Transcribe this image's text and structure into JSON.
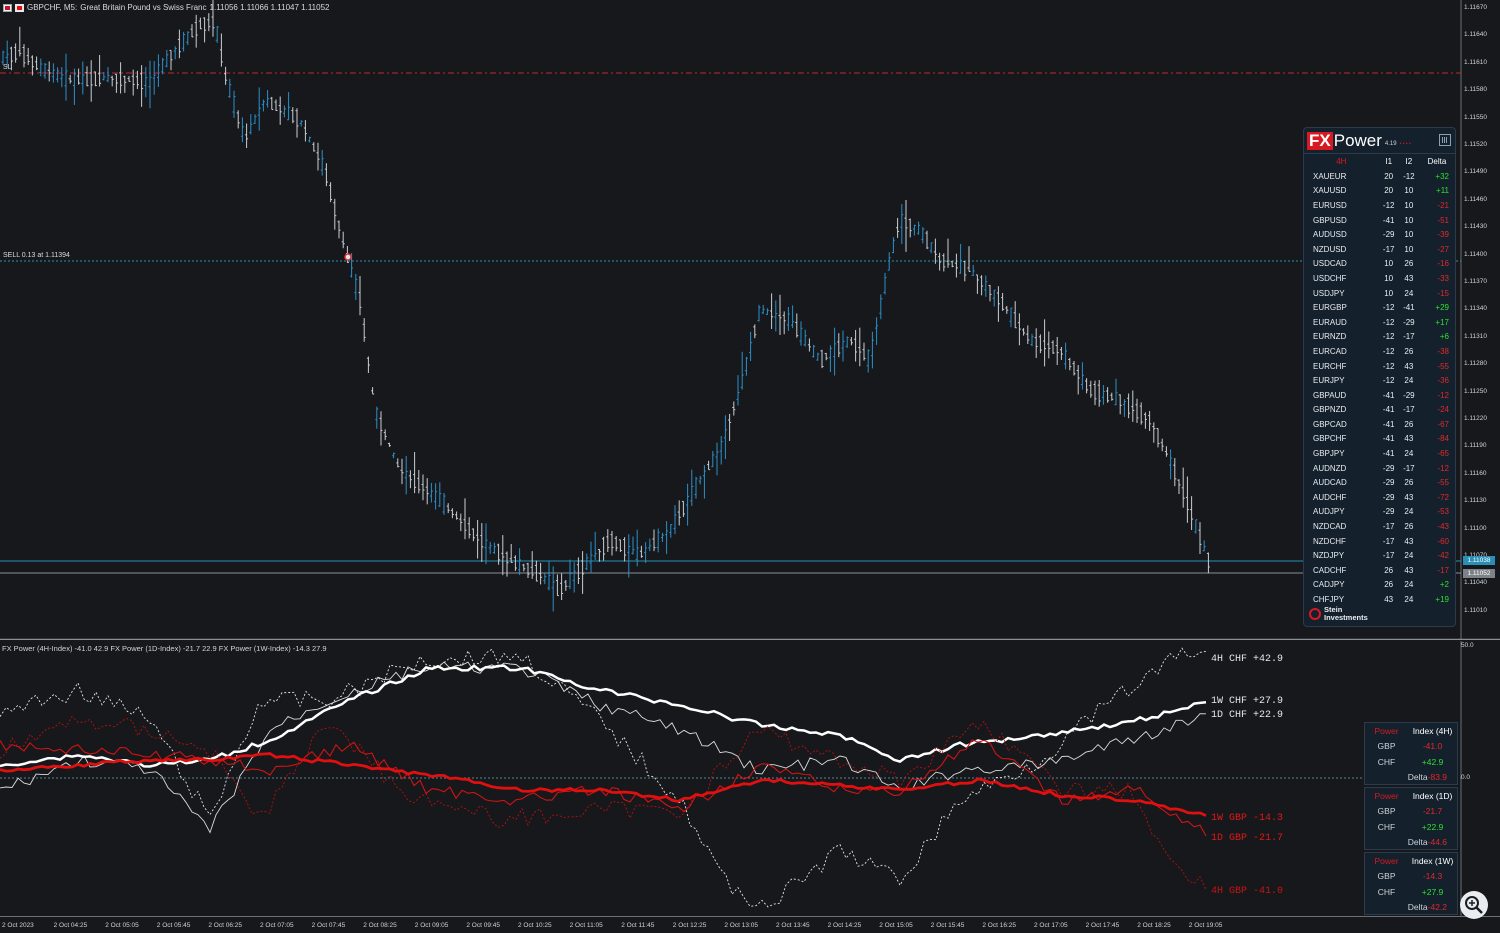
{
  "header": {
    "symbol": "GBPCHF, M5:",
    "description": "Great Britain Pound vs Swiss Franc",
    "ohlc": "1.11056 1.11066 1.11047 1.11052"
  },
  "labels": {
    "sl": "SL",
    "sell_order": "SELL 0.13 at 1.11394"
  },
  "price_axis": {
    "ticks": [
      "1.11670",
      "1.11640",
      "1.11610",
      "1.11580",
      "1.11550",
      "1.11520",
      "1.11490",
      "1.11460",
      "1.11430",
      "1.11400",
      "1.11370",
      "1.11340",
      "1.11310",
      "1.11280",
      "1.11250",
      "1.11220",
      "1.11190",
      "1.11160",
      "1.11130",
      "1.11100",
      "1.11070",
      "1.11040",
      "1.11010"
    ],
    "bid_badge": "1.11038",
    "last_badge": "1.11052"
  },
  "index_axis": {
    "top": "50.0",
    "zero": "0.0"
  },
  "time_axis": [
    "2 Oct 2023",
    "2 Oct 04:25",
    "2 Oct 05:05",
    "2 Oct 05:45",
    "2 Oct 06:25",
    "2 Oct 07:05",
    "2 Oct 07:45",
    "2 Oct 08:25",
    "2 Oct 09:05",
    "2 Oct 09:45",
    "2 Oct 10:25",
    "2 Oct 11:05",
    "2 Oct 11:45",
    "2 Oct 12:25",
    "2 Oct 13:05",
    "2 Oct 13:45",
    "2 Oct 14:25",
    "2 Oct 15:05",
    "2 Oct 15:45",
    "2 Oct 16:25",
    "2 Oct 17:05",
    "2 Oct 17:45",
    "2 Oct 18:25",
    "2 Oct 19:05"
  ],
  "subwindow": {
    "header": "FX Power (4H-Index) -41.0 42.9 FX Power (1D-Index) -21.7 22.9 FX Power (1W-Index) -14.3 27.9",
    "line_labels": {
      "chf_4h": "4H CHF +42.9",
      "chf_1w": "1W CHF +27.9",
      "chf_1d": "1D CHF +22.9",
      "gbp_1w": "1W GBP -14.3",
      "gbp_1d": "1D GBP -21.7",
      "gbp_4h": "4H GBP -41.0"
    }
  },
  "colors": {
    "bull": "#2c8fc8",
    "bear": "#c9ced4",
    "chf": "#ffffff",
    "gbp": "#e01010",
    "positive": "#2ee02e",
    "negative": "#e02a2a",
    "brand_red": "#d71a21"
  },
  "fx_power": {
    "logo_fx": "FX",
    "logo_power": "Power",
    "version": "4.19",
    "columns": [
      "4H",
      "I1",
      "I2",
      "Delta"
    ],
    "rows": [
      {
        "pair": "XAUEUR",
        "i1": "20",
        "i2": "-12",
        "delta": "+32"
      },
      {
        "pair": "XAUUSD",
        "i1": "20",
        "i2": "10",
        "delta": "+11"
      },
      {
        "pair": "EURUSD",
        "i1": "-12",
        "i2": "10",
        "delta": "-21"
      },
      {
        "pair": "GBPUSD",
        "i1": "-41",
        "i2": "10",
        "delta": "-51"
      },
      {
        "pair": "AUDUSD",
        "i1": "-29",
        "i2": "10",
        "delta": "-39"
      },
      {
        "pair": "NZDUSD",
        "i1": "-17",
        "i2": "10",
        "delta": "-27"
      },
      {
        "pair": "USDCAD",
        "i1": "10",
        "i2": "26",
        "delta": "-16"
      },
      {
        "pair": "USDCHF",
        "i1": "10",
        "i2": "43",
        "delta": "-33"
      },
      {
        "pair": "USDJPY",
        "i1": "10",
        "i2": "24",
        "delta": "-15"
      },
      {
        "pair": "EURGBP",
        "i1": "-12",
        "i2": "-41",
        "delta": "+29"
      },
      {
        "pair": "EURAUD",
        "i1": "-12",
        "i2": "-29",
        "delta": "+17"
      },
      {
        "pair": "EURNZD",
        "i1": "-12",
        "i2": "-17",
        "delta": "+6"
      },
      {
        "pair": "EURCAD",
        "i1": "-12",
        "i2": "26",
        "delta": "-38"
      },
      {
        "pair": "EURCHF",
        "i1": "-12",
        "i2": "43",
        "delta": "-55"
      },
      {
        "pair": "EURJPY",
        "i1": "-12",
        "i2": "24",
        "delta": "-36"
      },
      {
        "pair": "GBPAUD",
        "i1": "-41",
        "i2": "-29",
        "delta": "-12"
      },
      {
        "pair": "GBPNZD",
        "i1": "-41",
        "i2": "-17",
        "delta": "-24"
      },
      {
        "pair": "GBPCAD",
        "i1": "-41",
        "i2": "26",
        "delta": "-67"
      },
      {
        "pair": "GBPCHF",
        "i1": "-41",
        "i2": "43",
        "delta": "-84"
      },
      {
        "pair": "GBPJPY",
        "i1": "-41",
        "i2": "24",
        "delta": "-65"
      },
      {
        "pair": "AUDNZD",
        "i1": "-29",
        "i2": "-17",
        "delta": "-12"
      },
      {
        "pair": "AUDCAD",
        "i1": "-29",
        "i2": "26",
        "delta": "-55"
      },
      {
        "pair": "AUDCHF",
        "i1": "-29",
        "i2": "43",
        "delta": "-72"
      },
      {
        "pair": "AUDJPY",
        "i1": "-29",
        "i2": "24",
        "delta": "-53"
      },
      {
        "pair": "NZDCAD",
        "i1": "-17",
        "i2": "26",
        "delta": "-43"
      },
      {
        "pair": "NZDCHF",
        "i1": "-17",
        "i2": "43",
        "delta": "-60"
      },
      {
        "pair": "NZDJPY",
        "i1": "-17",
        "i2": "24",
        "delta": "-42"
      },
      {
        "pair": "CADCHF",
        "i1": "26",
        "i2": "43",
        "delta": "-17"
      },
      {
        "pair": "CADJPY",
        "i1": "26",
        "i2": "24",
        "delta": "+2"
      },
      {
        "pair": "CHFJPY",
        "i1": "43",
        "i2": "24",
        "delta": "+19"
      }
    ],
    "footer_line1": "Stein",
    "footer_line2": "Investments"
  },
  "index_boxes": [
    {
      "title": "Power",
      "tf": "Index (4H)",
      "gbp_label": "GBP",
      "gbp": "-41.0",
      "chf_label": "CHF",
      "chf": "+42.9",
      "delta_label": "Delta",
      "delta": "-83.9"
    },
    {
      "title": "Power",
      "tf": "Index (1D)",
      "gbp_label": "GBP",
      "gbp": "-21.7",
      "chf_label": "CHF",
      "chf": "+22.9",
      "delta_label": "Delta",
      "delta": "-44.6"
    },
    {
      "title": "Power",
      "tf": "Index (1W)",
      "gbp_label": "GBP",
      "gbp": "-14.3",
      "chf_label": "CHF",
      "chf": "+27.9",
      "delta_label": "Delta",
      "delta": "-42.2"
    }
  ],
  "icons": {
    "zoom": "magnifier-icon",
    "menu": "grid-menu-icon",
    "logo": "stein-investments-icon"
  }
}
